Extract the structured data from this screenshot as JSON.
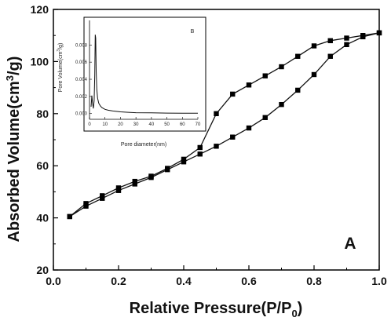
{
  "chart_data": [
    {
      "type": "line",
      "title": "",
      "panel_label": "A",
      "xlabel_main": "Relative Pressure(P/P",
      "xlabel_sub": "0",
      "xlabel_end": ")",
      "ylabel_main": "Absorbed Volume(cm",
      "ylabel_sup": "3",
      "ylabel_end": "/g)",
      "xlim": [
        0.0,
        1.0
      ],
      "ylim": [
        20,
        120
      ],
      "xticks": [
        "0.0",
        "0.2",
        "0.4",
        "0.6",
        "0.8",
        "1.0"
      ],
      "yticks": [
        "20",
        "40",
        "60",
        "80",
        "100",
        "120"
      ],
      "marker": "square",
      "series": [
        {
          "role": "adsorption",
          "x": [
            0.05,
            0.1,
            0.15,
            0.2,
            0.25,
            0.3,
            0.35,
            0.4,
            0.45,
            0.5,
            0.55,
            0.6,
            0.65,
            0.7,
            0.75,
            0.8,
            0.85,
            0.9,
            0.95,
            1.0
          ],
          "y": [
            40.5,
            44.5,
            47.5,
            50.5,
            53.0,
            55.5,
            58.5,
            61.5,
            64.5,
            67.5,
            71.0,
            74.5,
            78.5,
            83.5,
            89.0,
            95.0,
            102.0,
            106.5,
            109.5,
            111.0
          ]
        },
        {
          "role": "desorption",
          "x": [
            1.0,
            0.95,
            0.9,
            0.85,
            0.8,
            0.75,
            0.7,
            0.65,
            0.6,
            0.55,
            0.5,
            0.45,
            0.4,
            0.35,
            0.3,
            0.25,
            0.2,
            0.15,
            0.1,
            0.05
          ],
          "y": [
            111.0,
            110.0,
            109.0,
            108.0,
            106.0,
            102.0,
            98.0,
            94.5,
            91.0,
            87.5,
            80.0,
            67.0,
            62.5,
            59.0,
            56.0,
            54.0,
            51.5,
            48.5,
            45.5,
            40.5
          ]
        }
      ]
    },
    {
      "type": "line",
      "panel_label": "B",
      "xlabel": "Pore diameter(nm)",
      "ylabel_main": "Pore Volume(cm",
      "ylabel_sup": "3",
      "ylabel_end": "/g)",
      "xlim": [
        0,
        70
      ],
      "ylim": [
        -0.0003,
        0.0105
      ],
      "xticks": [
        "0",
        "10",
        "20",
        "30",
        "40",
        "50",
        "60",
        "70"
      ],
      "yticks": [
        "0.000",
        "0.002",
        "0.004",
        "0.006",
        "0.008"
      ],
      "series": [
        {
          "x": [
            1.0,
            1.5,
            2.0,
            2.5,
            3.0,
            3.4,
            3.7,
            4.0,
            4.3,
            4.7,
            5.2,
            6.0,
            7.0,
            8.0,
            10.0,
            12.0,
            15.0,
            20.0,
            25.0,
            30.0,
            40.0,
            50.0,
            60.0,
            70.0
          ],
          "y": [
            0.0008,
            0.0021,
            0.0012,
            0.0006,
            0.0015,
            0.0045,
            0.0092,
            0.0088,
            0.005,
            0.0028,
            0.0018,
            0.0012,
            0.0009,
            0.0007,
            0.0005,
            0.0004,
            0.0003,
            0.0002,
            0.00015,
            0.0001,
            8e-05,
            6e-05,
            5e-05,
            5e-05
          ]
        }
      ]
    }
  ]
}
